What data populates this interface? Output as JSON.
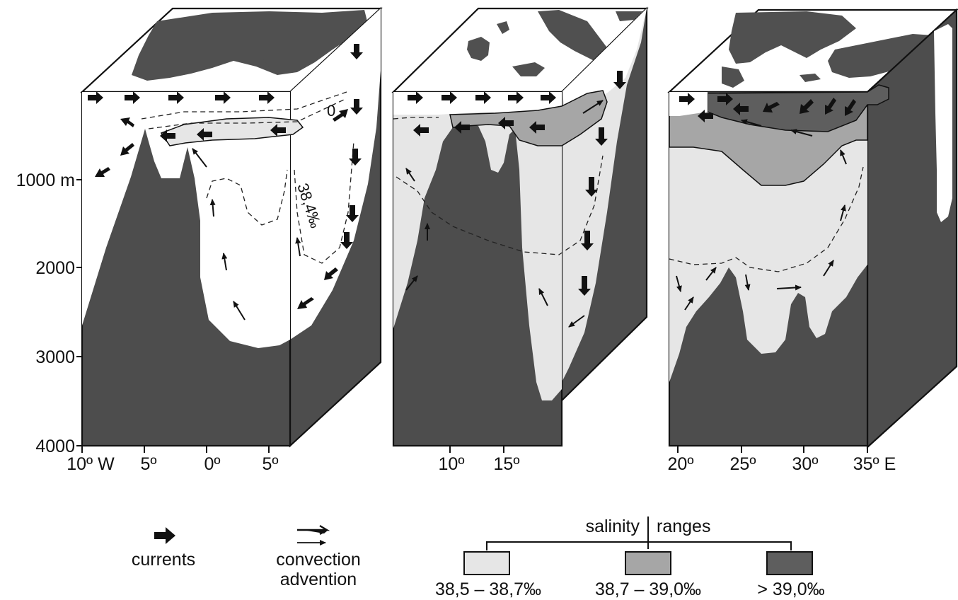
{
  "axis": {
    "depth_ticks": [
      "1000 m",
      "2000",
      "3000",
      "4000"
    ],
    "west_ticks": [
      "10º W",
      "5º",
      "0º",
      "5º"
    ],
    "central_ticks": [
      "10º",
      "15º"
    ],
    "east_ticks": [
      "20º",
      "25º",
      "30º",
      "35º E"
    ]
  },
  "annotations": {
    "isohaline_value": "38,4‰",
    "zero_label": "0"
  },
  "legend": {
    "currents": "currents",
    "convection_line1": "convection",
    "convection_line2": "advention",
    "salinity_title_left": "salinity",
    "salinity_title_right": "ranges",
    "ranges": [
      {
        "label": "38,5 – 38,7‰",
        "color": "#e6e6e6"
      },
      {
        "label": "38,7 – 39,0‰",
        "color": "#a6a6a6"
      },
      {
        "label": "> 39,0‰",
        "color": "#5e5e5e"
      }
    ]
  },
  "colors": {
    "land": "#505050",
    "seabed": "#4d4d4d",
    "water": "#ffffff",
    "salinity_low": "#e6e6e6",
    "salinity_mid": "#a6a6a6",
    "salinity_high": "#5e5e5e"
  }
}
